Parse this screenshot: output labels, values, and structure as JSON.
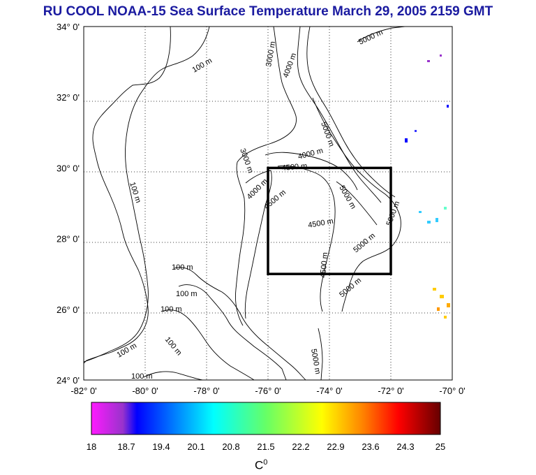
{
  "title": "RU COOL  NOAA-15 Sea Surface Temperature March 29, 2005 2159 GMT",
  "map": {
    "lon_range": [
      -82,
      -70
    ],
    "lat_range": [
      24,
      34
    ],
    "lon_ticks": [
      "-82° 0'",
      "-80° 0'",
      "-78° 0'",
      "-76° 0'",
      "-74° 0'",
      "-72° 0'",
      "-70° 0'"
    ],
    "lat_ticks": [
      "34° 0'",
      "32° 0'",
      "30° 0'",
      "28° 0'",
      "26° 0'",
      "24° 0'"
    ],
    "grid": true,
    "box": {
      "lon_min": -76,
      "lon_max": -72,
      "lat_min": 27,
      "lat_max": 30
    },
    "contour_labels": [
      "100 m",
      "100 m",
      "100 m",
      "100 m",
      "100 m",
      "100 m",
      "100 m",
      "100 m",
      "3000 m",
      "3000 m",
      "4000 m",
      "4000 m",
      "4500 m",
      "4500 m",
      "4500 m",
      "5000 m",
      "5000 m",
      "5000 m",
      "5000 m",
      "5000 m",
      "5000 m",
      "4000 m",
      "4500 m",
      "5000 m"
    ]
  },
  "colorbar": {
    "ticks": [
      "18",
      "18.7",
      "19.4",
      "20.1",
      "20.8",
      "21.5",
      "22.2",
      "22.9",
      "23.6",
      "24.3",
      "25"
    ],
    "min": 18,
    "max": 25,
    "unit_base": "C",
    "unit_sup": "0",
    "colors": [
      "#ff1aff",
      "#0000ff",
      "#00ffff",
      "#66ff66",
      "#ffff00",
      "#ff8000",
      "#ff0000",
      "#660000"
    ]
  }
}
